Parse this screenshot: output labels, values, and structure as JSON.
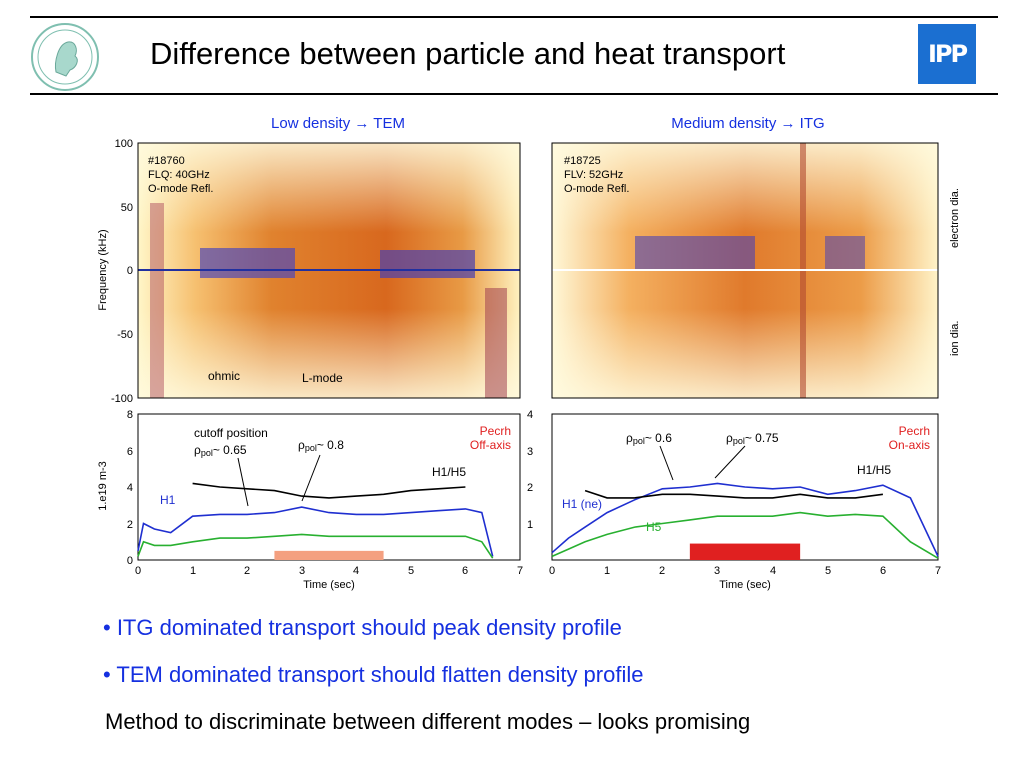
{
  "header": {
    "title": "Difference between particle and heat transport",
    "ipp_logo": "IPP"
  },
  "left": {
    "title": "Low density → TEM",
    "shot": "#18760",
    "channel": "FLQ: 40GHz",
    "mode": "O-mode Refl.",
    "label_ohmic": "ohmic",
    "label_lmode": "L-mode",
    "cutoff": "cutoff position",
    "rho1_sym": "ρ",
    "rho1_sub": "pol",
    "rho1_val": "~ 0.65",
    "rho2_sym": "ρ",
    "rho2_sub": "pol",
    "rho2_val": "~ 0.8",
    "heating": "Pecrh",
    "heating2": "Off-axis",
    "h1h5": "H1/H5",
    "h1": "H1"
  },
  "right": {
    "title": "Medium density → ITG",
    "shot": "#18725",
    "channel": "FLV: 52GHz",
    "mode": "O-mode Refl.",
    "rho1_sym": "ρ",
    "rho1_sub": "pol",
    "rho1_val": "~ 0.6",
    "rho2_sym": "ρ",
    "rho2_sub": "pol",
    "rho2_val": "~ 0.75",
    "heating": "Pecrh",
    "heating2": "On-axis",
    "h1h5": "H1/H5",
    "h1": "H1 (ne)",
    "h5": "H5",
    "electron": "electron dia.",
    "ion": "ion dia."
  },
  "axes": {
    "freq_label": "Frequency (kHz)",
    "freq_ticks": [
      "100",
      "50",
      "0",
      "-50",
      "-100"
    ],
    "dens_label": "1.e19 m-3",
    "dens_ticks": [
      "8",
      "6",
      "4",
      "2",
      "0"
    ],
    "right_ticks": [
      "4",
      "3",
      "2",
      "1"
    ],
    "time_label": "Time (sec)",
    "time_ticks": [
      "0",
      "1",
      "2",
      "3",
      "4",
      "5",
      "6",
      "7"
    ]
  },
  "bullets": [
    "• ITG dominated transport should peak density profile",
    "• TEM dominated transport should flatten density profile"
  ],
  "conclusion": "Method to discriminate between different modes – looks promising",
  "colors": {
    "title_blue": "#1530e0",
    "pecrh_red": "#e02020",
    "h1_blue": "#1f2fd0",
    "h5_green": "#28b030",
    "ipp": "#1b6fd1"
  },
  "chart_data": [
    {
      "type": "line",
      "panel": "left",
      "x": [
        0,
        0.1,
        0.3,
        0.6,
        1.0,
        1.5,
        2.0,
        2.5,
        3.0,
        3.5,
        4.0,
        4.5,
        5.0,
        5.5,
        6.0,
        6.3,
        6.5
      ],
      "series": [
        {
          "name": "H1",
          "values": [
            0.5,
            2.0,
            1.7,
            1.5,
            2.4,
            2.5,
            2.5,
            2.6,
            2.9,
            2.6,
            2.5,
            2.5,
            2.6,
            2.7,
            2.8,
            2.6,
            0.2
          ]
        },
        {
          "name": "H1/H5",
          "values": [
            null,
            null,
            null,
            null,
            4.2,
            4.0,
            3.9,
            3.8,
            3.5,
            3.4,
            3.5,
            3.6,
            3.8,
            3.9,
            4.0,
            null,
            null
          ]
        },
        {
          "name": "H5",
          "values": [
            0.2,
            1.0,
            0.8,
            0.8,
            1.0,
            1.2,
            1.2,
            1.3,
            1.4,
            1.3,
            1.3,
            1.3,
            1.3,
            1.3,
            1.3,
            1.0,
            0.1
          ]
        }
      ],
      "pecrh": {
        "start": 2.5,
        "end": 4.5,
        "level": 0.5
      },
      "xlabel": "Time (sec)",
      "ylabel": "1.e19 m-3",
      "xlim": [
        0,
        7
      ],
      "ylim": [
        0,
        8
      ]
    },
    {
      "type": "line",
      "panel": "right",
      "x": [
        0,
        0.3,
        0.6,
        1.0,
        1.5,
        2.0,
        2.5,
        3.0,
        3.5,
        4.0,
        4.5,
        5.0,
        5.5,
        6.0,
        6.5,
        7.0
      ],
      "series": [
        {
          "name": "H1 (ne)",
          "values": [
            0.4,
            1.2,
            1.8,
            2.6,
            3.3,
            3.9,
            4.0,
            4.2,
            4.0,
            3.9,
            4.0,
            3.6,
            3.8,
            4.1,
            3.4,
            0.2
          ]
        },
        {
          "name": "H1/H5",
          "values": [
            null,
            null,
            3.8,
            3.4,
            3.4,
            3.6,
            3.6,
            3.5,
            3.4,
            3.4,
            3.6,
            3.4,
            3.4,
            3.6,
            null,
            null
          ]
        },
        {
          "name": "H5",
          "values": [
            0.2,
            0.6,
            1.0,
            1.4,
            1.8,
            2.0,
            2.2,
            2.4,
            2.4,
            2.4,
            2.6,
            2.4,
            2.5,
            2.4,
            1.0,
            0.1
          ]
        }
      ],
      "pecrh": {
        "start": 2.5,
        "end": 4.5,
        "level": 0.9
      },
      "xlabel": "Time (sec)",
      "xlim": [
        0,
        7
      ],
      "ylim": [
        0,
        8
      ]
    }
  ]
}
